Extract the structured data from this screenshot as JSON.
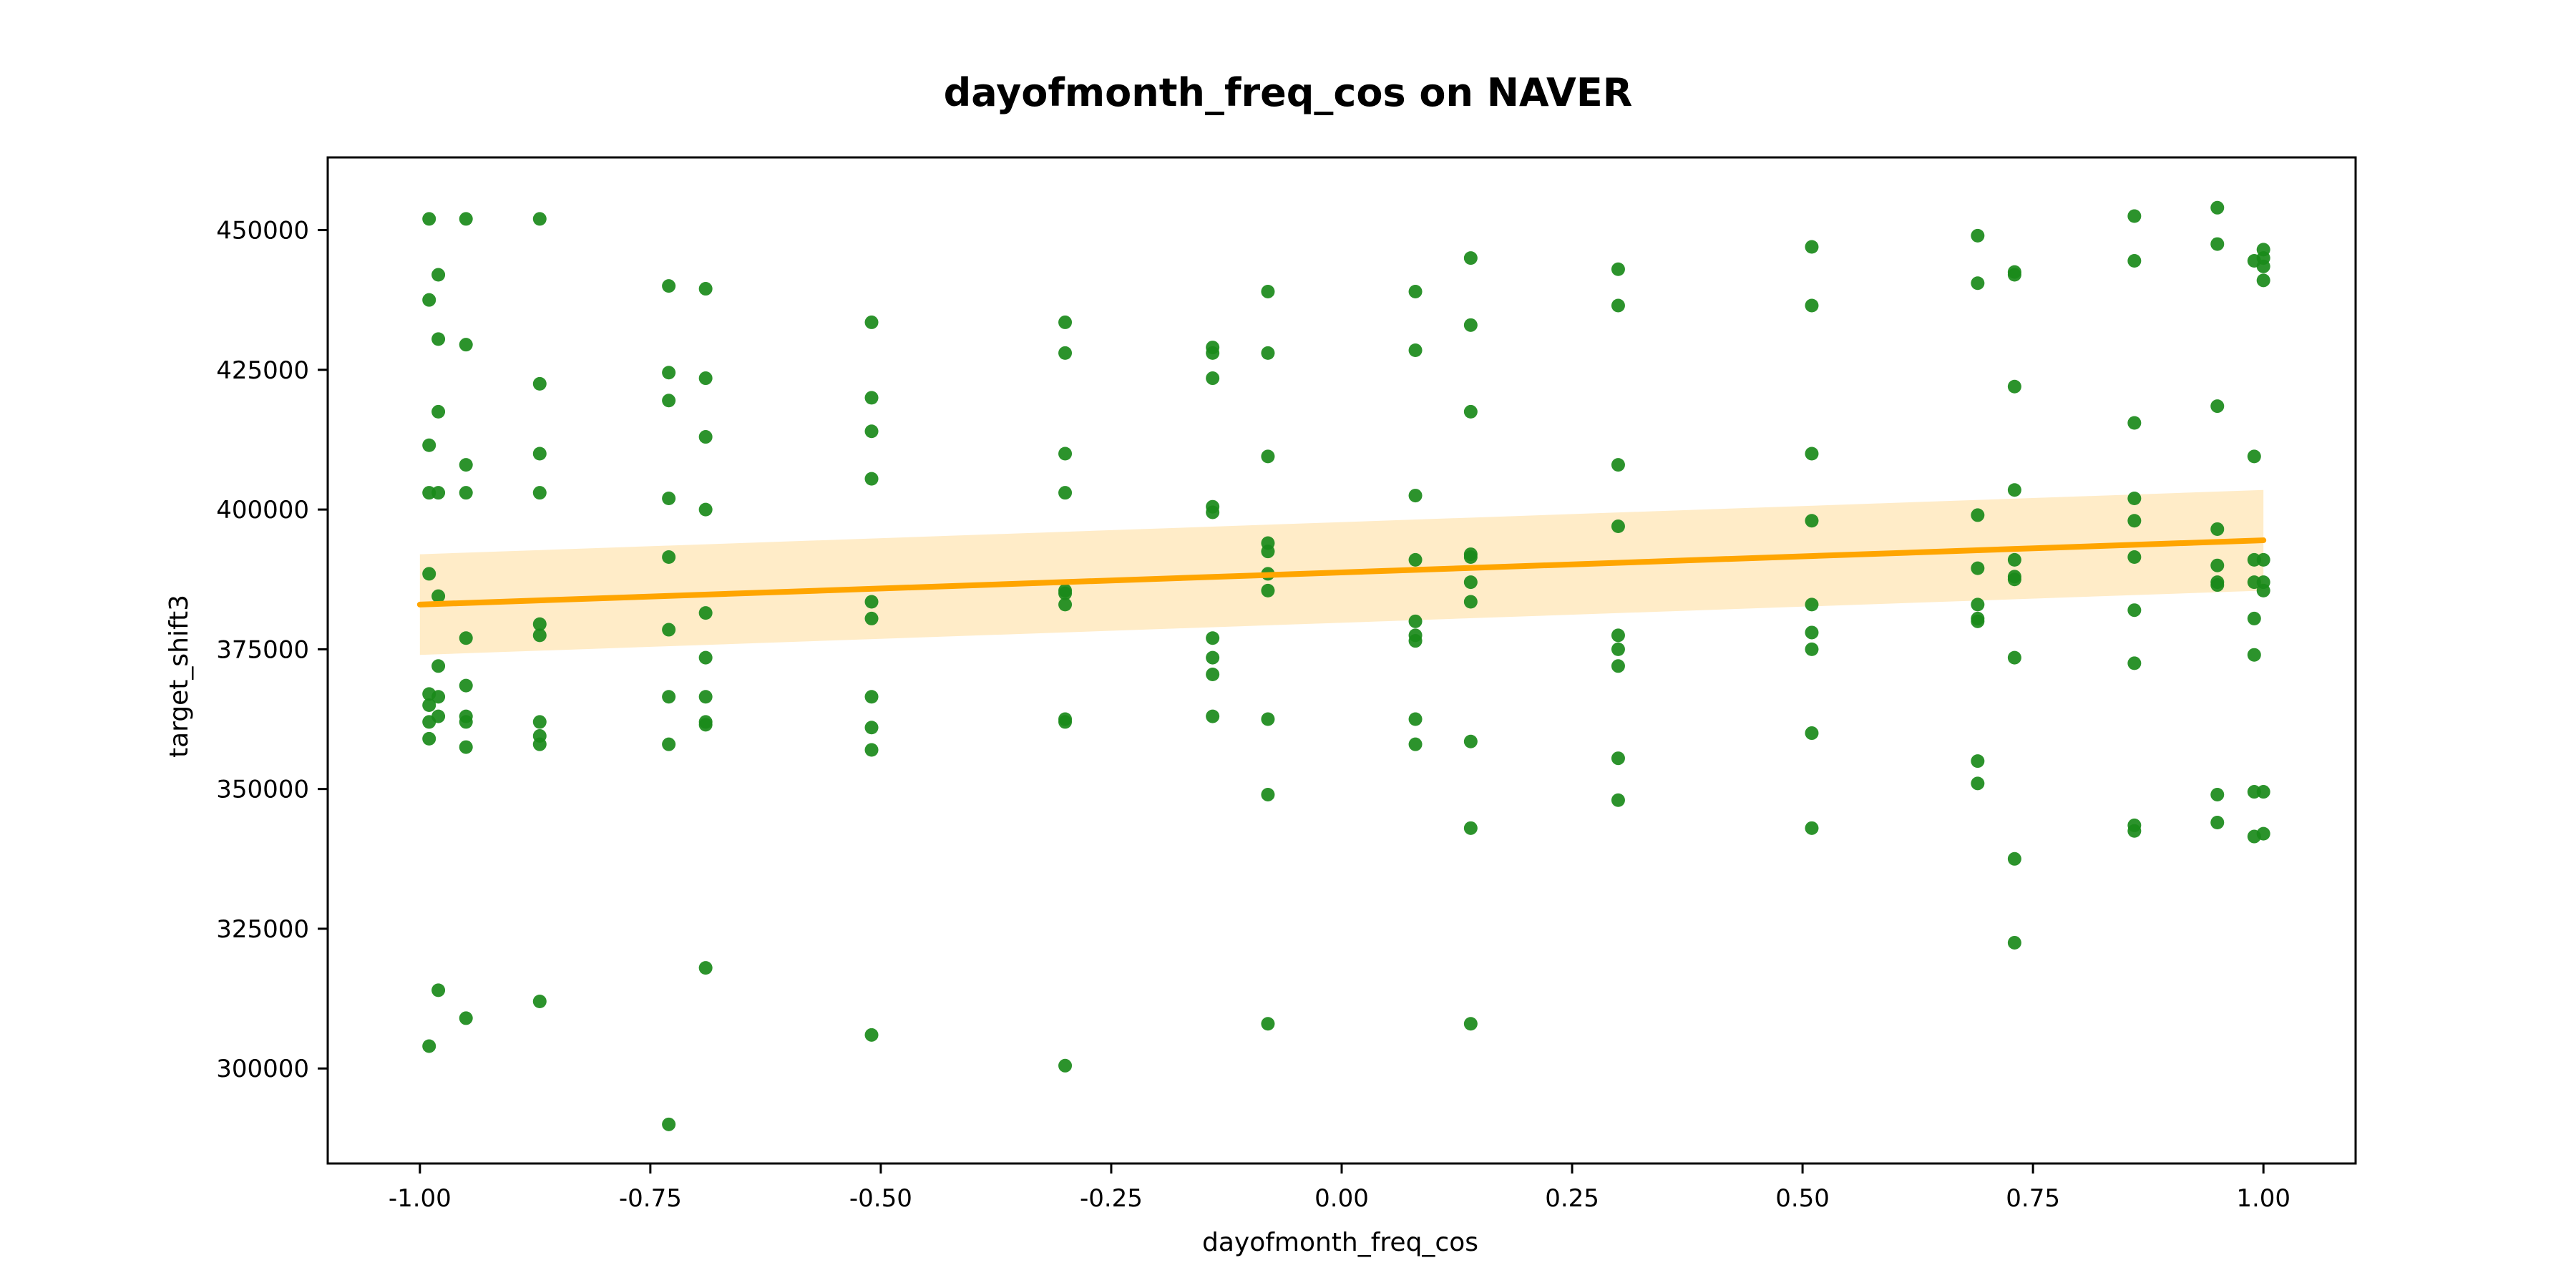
{
  "chart_data": {
    "type": "scatter",
    "title": "dayofmonth_freq_cos on NAVER",
    "xlabel": "dayofmonth_freq_cos",
    "ylabel": "target_shift3",
    "xlim": [
      -1.1,
      1.1
    ],
    "ylim": [
      283000,
      463000
    ],
    "x_ticks": [
      -1.0,
      -0.75,
      -0.5,
      -0.25,
      0.0,
      0.25,
      0.5,
      0.75,
      1.0
    ],
    "x_tick_labels": [
      "-1.00",
      "-0.75",
      "-0.50",
      "-0.25",
      "0.00",
      "0.25",
      "0.50",
      "0.75",
      "1.00"
    ],
    "y_ticks": [
      300000,
      325000,
      350000,
      375000,
      400000,
      425000,
      450000
    ],
    "y_tick_labels": [
      "300000",
      "325000",
      "350000",
      "375000",
      "400000",
      "425000",
      "450000"
    ],
    "grid": false,
    "colors": {
      "points": "#1a8a1a",
      "line": "#ffa500",
      "band": "#ffecc8"
    },
    "points": [
      [
        -0.99,
        452000
      ],
      [
        -0.99,
        437500
      ],
      [
        -0.99,
        411500
      ],
      [
        -0.99,
        403000
      ],
      [
        -0.99,
        388500
      ],
      [
        -0.99,
        367000
      ],
      [
        -0.99,
        365000
      ],
      [
        -0.99,
        362000
      ],
      [
        -0.99,
        359000
      ],
      [
        -0.99,
        304000
      ],
      [
        -0.98,
        442000
      ],
      [
        -0.98,
        430500
      ],
      [
        -0.98,
        417500
      ],
      [
        -0.98,
        403000
      ],
      [
        -0.98,
        384500
      ],
      [
        -0.98,
        372000
      ],
      [
        -0.98,
        366500
      ],
      [
        -0.98,
        363000
      ],
      [
        -0.98,
        314000
      ],
      [
        -0.95,
        452000
      ],
      [
        -0.95,
        429500
      ],
      [
        -0.95,
        408000
      ],
      [
        -0.95,
        403000
      ],
      [
        -0.95,
        377000
      ],
      [
        -0.95,
        368500
      ],
      [
        -0.95,
        363000
      ],
      [
        -0.95,
        362000
      ],
      [
        -0.95,
        357500
      ],
      [
        -0.95,
        309000
      ],
      [
        -0.87,
        452000
      ],
      [
        -0.87,
        422500
      ],
      [
        -0.87,
        410000
      ],
      [
        -0.87,
        403000
      ],
      [
        -0.87,
        379500
      ],
      [
        -0.87,
        377500
      ],
      [
        -0.87,
        362000
      ],
      [
        -0.87,
        359500
      ],
      [
        -0.87,
        358000
      ],
      [
        -0.87,
        312000
      ],
      [
        -0.73,
        440000
      ],
      [
        -0.73,
        424500
      ],
      [
        -0.73,
        419500
      ],
      [
        -0.73,
        402000
      ],
      [
        -0.73,
        391500
      ],
      [
        -0.73,
        378500
      ],
      [
        -0.73,
        366500
      ],
      [
        -0.73,
        358000
      ],
      [
        -0.73,
        290000
      ],
      [
        -0.69,
        439500
      ],
      [
        -0.69,
        423500
      ],
      [
        -0.69,
        413000
      ],
      [
        -0.69,
        400000
      ],
      [
        -0.69,
        381500
      ],
      [
        -0.69,
        373500
      ],
      [
        -0.69,
        366500
      ],
      [
        -0.69,
        362000
      ],
      [
        -0.69,
        361500
      ],
      [
        -0.69,
        318000
      ],
      [
        -0.51,
        433500
      ],
      [
        -0.51,
        420000
      ],
      [
        -0.51,
        414000
      ],
      [
        -0.51,
        405500
      ],
      [
        -0.51,
        383500
      ],
      [
        -0.51,
        380500
      ],
      [
        -0.51,
        366500
      ],
      [
        -0.51,
        361000
      ],
      [
        -0.51,
        357000
      ],
      [
        -0.51,
        306000
      ],
      [
        -0.3,
        433500
      ],
      [
        -0.3,
        428000
      ],
      [
        -0.3,
        410000
      ],
      [
        -0.3,
        403000
      ],
      [
        -0.3,
        385500
      ],
      [
        -0.3,
        385000
      ],
      [
        -0.3,
        383000
      ],
      [
        -0.3,
        362500
      ],
      [
        -0.3,
        362000
      ],
      [
        -0.3,
        300500
      ],
      [
        -0.14,
        429000
      ],
      [
        -0.14,
        428000
      ],
      [
        -0.14,
        423500
      ],
      [
        -0.14,
        400500
      ],
      [
        -0.14,
        399500
      ],
      [
        -0.14,
        377000
      ],
      [
        -0.14,
        373500
      ],
      [
        -0.14,
        370500
      ],
      [
        -0.14,
        363000
      ],
      [
        -0.08,
        439000
      ],
      [
        -0.08,
        428000
      ],
      [
        -0.08,
        409500
      ],
      [
        -0.08,
        394000
      ],
      [
        -0.08,
        392500
      ],
      [
        -0.08,
        388500
      ],
      [
        -0.08,
        385500
      ],
      [
        -0.08,
        362500
      ],
      [
        -0.08,
        349000
      ],
      [
        -0.08,
        308000
      ],
      [
        0.08,
        439000
      ],
      [
        0.08,
        428500
      ],
      [
        0.08,
        402500
      ],
      [
        0.08,
        391000
      ],
      [
        0.08,
        380000
      ],
      [
        0.08,
        377500
      ],
      [
        0.08,
        376500
      ],
      [
        0.08,
        362500
      ],
      [
        0.08,
        358000
      ],
      [
        0.14,
        445000
      ],
      [
        0.14,
        433000
      ],
      [
        0.14,
        417500
      ],
      [
        0.14,
        392000
      ],
      [
        0.14,
        391500
      ],
      [
        0.14,
        387000
      ],
      [
        0.14,
        383500
      ],
      [
        0.14,
        358500
      ],
      [
        0.14,
        343000
      ],
      [
        0.14,
        308000
      ],
      [
        0.3,
        443000
      ],
      [
        0.3,
        436500
      ],
      [
        0.3,
        408000
      ],
      [
        0.3,
        397000
      ],
      [
        0.3,
        377500
      ],
      [
        0.3,
        375000
      ],
      [
        0.3,
        372000
      ],
      [
        0.3,
        355500
      ],
      [
        0.3,
        348000
      ],
      [
        0.51,
        447000
      ],
      [
        0.51,
        436500
      ],
      [
        0.51,
        410000
      ],
      [
        0.51,
        398000
      ],
      [
        0.51,
        383000
      ],
      [
        0.51,
        378000
      ],
      [
        0.51,
        375000
      ],
      [
        0.51,
        360000
      ],
      [
        0.51,
        343000
      ],
      [
        0.69,
        449000
      ],
      [
        0.69,
        440500
      ],
      [
        0.69,
        399000
      ],
      [
        0.69,
        389500
      ],
      [
        0.69,
        383000
      ],
      [
        0.69,
        380500
      ],
      [
        0.69,
        380000
      ],
      [
        0.69,
        355000
      ],
      [
        0.69,
        351000
      ],
      [
        0.73,
        442500
      ],
      [
        0.73,
        442000
      ],
      [
        0.73,
        422000
      ],
      [
        0.73,
        403500
      ],
      [
        0.73,
        391000
      ],
      [
        0.73,
        388000
      ],
      [
        0.73,
        387500
      ],
      [
        0.73,
        373500
      ],
      [
        0.73,
        337500
      ],
      [
        0.73,
        322500
      ],
      [
        0.86,
        452500
      ],
      [
        0.86,
        444500
      ],
      [
        0.86,
        415500
      ],
      [
        0.86,
        402000
      ],
      [
        0.86,
        398000
      ],
      [
        0.86,
        391500
      ],
      [
        0.86,
        382000
      ],
      [
        0.86,
        372500
      ],
      [
        0.86,
        343500
      ],
      [
        0.86,
        342500
      ],
      [
        0.95,
        454000
      ],
      [
        0.95,
        447500
      ],
      [
        0.95,
        418500
      ],
      [
        0.95,
        396500
      ],
      [
        0.95,
        390000
      ],
      [
        0.95,
        387000
      ],
      [
        0.95,
        386500
      ],
      [
        0.95,
        349000
      ],
      [
        0.95,
        344000
      ],
      [
        0.99,
        444500
      ],
      [
        0.99,
        409500
      ],
      [
        0.99,
        391000
      ],
      [
        0.99,
        387000
      ],
      [
        0.99,
        380500
      ],
      [
        0.99,
        374000
      ],
      [
        0.99,
        349500
      ],
      [
        0.99,
        341500
      ],
      [
        1.0,
        446500
      ],
      [
        1.0,
        445000
      ],
      [
        1.0,
        443500
      ],
      [
        1.0,
        441000
      ],
      [
        1.0,
        391000
      ],
      [
        1.0,
        387000
      ],
      [
        1.0,
        385500
      ],
      [
        1.0,
        349500
      ],
      [
        1.0,
        342000
      ]
    ],
    "regression": {
      "x": [
        -1.0,
        1.0
      ],
      "y": [
        383000,
        394500
      ],
      "ci_lower": [
        374000,
        385500
      ],
      "ci_upper": [
        392000,
        403500
      ]
    }
  }
}
